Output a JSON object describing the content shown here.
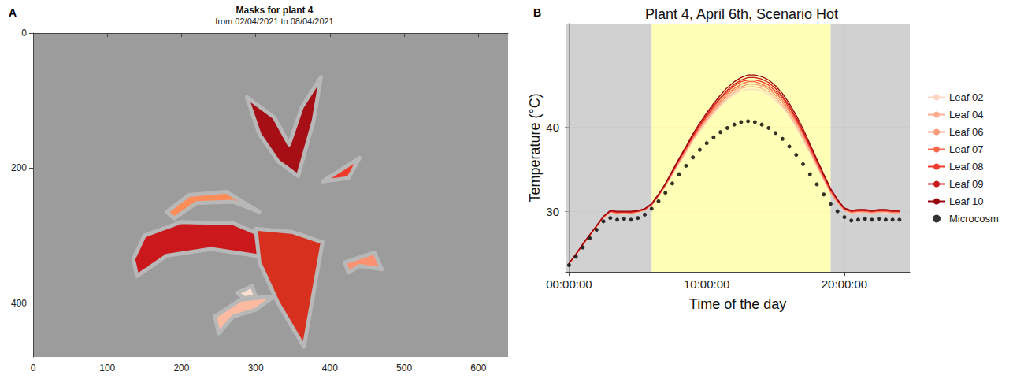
{
  "chart_data": [
    {
      "type": "polygon",
      "panel_label": "A",
      "title": "Masks for plant 4",
      "subtitle": "from 02/04/2021 to 08/04/2021",
      "xlim": [
        0,
        640
      ],
      "xticks": [
        0,
        100,
        200,
        300,
        400,
        500,
        600
      ],
      "ylim": [
        480,
        0
      ],
      "yticks": [
        0,
        200,
        400
      ],
      "grid": false,
      "masks": [
        {
          "color": "#a50f15",
          "points": [
            [
              288,
              95
            ],
            [
              325,
              125
            ],
            [
              345,
              165
            ],
            [
              362,
              110
            ],
            [
              388,
              65
            ],
            [
              378,
              130
            ],
            [
              357,
              212
            ],
            [
              330,
              190
            ],
            [
              305,
              150
            ]
          ]
        },
        {
          "color": "#ef3b2c",
          "points": [
            [
              390,
              220
            ],
            [
              440,
              185
            ],
            [
              425,
              215
            ]
          ]
        },
        {
          "color": "#fc8d59",
          "points": [
            [
              180,
              265
            ],
            [
              210,
              240
            ],
            [
              260,
              235
            ],
            [
              305,
              265
            ],
            [
              270,
              250
            ],
            [
              220,
              252
            ],
            [
              190,
              275
            ]
          ]
        },
        {
          "color": "#cb181d",
          "points": [
            [
              135,
              335
            ],
            [
              150,
              300
            ],
            [
              200,
              280
            ],
            [
              270,
              282
            ],
            [
              320,
              305
            ],
            [
              350,
              330
            ],
            [
              300,
              330
            ],
            [
              240,
              320
            ],
            [
              180,
              330
            ],
            [
              140,
              360
            ]
          ]
        },
        {
          "color": "#d7301f",
          "points": [
            [
              300,
              290
            ],
            [
              350,
              295
            ],
            [
              390,
              310
            ],
            [
              365,
              465
            ],
            [
              330,
              400
            ],
            [
              305,
              340
            ]
          ]
        },
        {
          "color": "#fc9272",
          "points": [
            [
              420,
              340
            ],
            [
              460,
              325
            ],
            [
              470,
              350
            ],
            [
              440,
              345
            ],
            [
              425,
              355
            ]
          ]
        },
        {
          "color": "#fcbba1",
          "points": [
            [
              245,
              420
            ],
            [
              280,
              395
            ],
            [
              325,
              390
            ],
            [
              300,
              410
            ],
            [
              270,
              420
            ],
            [
              250,
              445
            ]
          ]
        },
        {
          "color": "#fde0d2",
          "points": [
            [
              275,
              385
            ],
            [
              295,
              375
            ],
            [
              300,
              390
            ],
            [
              285,
              393
            ]
          ]
        }
      ]
    },
    {
      "type": "line",
      "panel_label": "B",
      "title": "Plant 4, April 6th, Scenario Hot",
      "xlabel": "Time of the day",
      "ylabel": "Temperature (°C)",
      "xlim": [
        -0.25,
        24.75
      ],
      "xticks": [
        {
          "value": 0,
          "label": "00:00:00"
        },
        {
          "value": 10,
          "label": "10:00:00"
        },
        {
          "value": 20,
          "label": "20:00:00"
        }
      ],
      "ylim": [
        22.8,
        52.3
      ],
      "yticks": [
        30,
        40
      ],
      "grid": true,
      "legend": "right",
      "shading": [
        {
          "from": -0.25,
          "to": 6,
          "color": "#bebebe"
        },
        {
          "from": 6,
          "to": 19,
          "color": "#ffff99"
        },
        {
          "from": 19,
          "to": 24.75,
          "color": "#bebebe"
        }
      ],
      "x": [
        0,
        0.5,
        1,
        1.5,
        2,
        2.5,
        3,
        3.5,
        4,
        4.5,
        5,
        5.5,
        6,
        6.5,
        7,
        7.5,
        8,
        8.5,
        9,
        9.5,
        10,
        10.5,
        11,
        11.5,
        12,
        12.5,
        13,
        13.5,
        14,
        14.5,
        15,
        15.5,
        16,
        16.5,
        17,
        17.5,
        18,
        18.5,
        19,
        19.5,
        20,
        20.5,
        21,
        21.5,
        22,
        22.5,
        23,
        23.5,
        24
      ],
      "series": [
        {
          "name": "Leaf 02",
          "color": "#fcd5c5",
          "values": [
            23.7,
            24.8,
            26.0,
            27.1,
            28.1,
            29.2,
            29.8,
            29.7,
            29.7,
            29.7,
            29.8,
            30.1,
            30.7,
            31.8,
            33.0,
            34.3,
            35.7,
            37.0,
            38.4,
            39.5,
            40.6,
            41.6,
            42.5,
            43.3,
            43.9,
            44.3,
            44.5,
            44.5,
            44.3,
            43.9,
            43.2,
            42.4,
            41.3,
            40.0,
            38.5,
            36.9,
            35.3,
            33.7,
            32.2,
            31.0,
            30.1,
            29.7,
            29.8,
            29.9,
            29.8,
            29.9,
            29.8,
            29.8,
            29.8
          ]
        },
        {
          "name": "Leaf 04",
          "color": "#fcae91",
          "values": [
            23.7,
            24.8,
            26.0,
            27.1,
            28.2,
            29.2,
            29.9,
            29.7,
            29.8,
            29.7,
            29.9,
            30.1,
            30.7,
            31.8,
            33.0,
            34.4,
            35.8,
            37.1,
            38.5,
            39.7,
            40.8,
            41.8,
            42.7,
            43.5,
            44.1,
            44.6,
            44.8,
            44.8,
            44.6,
            44.2,
            43.5,
            42.6,
            41.5,
            40.2,
            38.7,
            37.1,
            35.4,
            33.8,
            32.2,
            31.0,
            30.1,
            29.8,
            29.9,
            29.9,
            29.8,
            29.9,
            29.9,
            29.8,
            29.8
          ]
        },
        {
          "name": "Leaf 06",
          "color": "#fb9a7a",
          "values": [
            23.8,
            24.8,
            26.0,
            27.1,
            28.2,
            29.3,
            29.9,
            29.8,
            29.8,
            29.8,
            29.9,
            30.2,
            30.8,
            31.8,
            33.1,
            34.5,
            35.9,
            37.2,
            38.6,
            39.9,
            41.0,
            42.0,
            42.9,
            43.7,
            44.4,
            44.8,
            45.1,
            45.1,
            44.9,
            44.5,
            43.8,
            42.9,
            41.8,
            40.5,
            39.0,
            37.3,
            35.6,
            33.9,
            32.3,
            31.1,
            30.2,
            29.9,
            30.0,
            30.0,
            29.9,
            30.0,
            30.0,
            29.9,
            29.9
          ]
        },
        {
          "name": "Leaf 07",
          "color": "#fb6a4a",
          "values": [
            23.8,
            24.9,
            26.0,
            27.1,
            28.2,
            29.3,
            30.0,
            29.8,
            29.9,
            29.8,
            30.0,
            30.2,
            30.8,
            31.9,
            33.1,
            34.6,
            36.0,
            37.4,
            38.8,
            40.0,
            41.2,
            42.2,
            43.1,
            44.0,
            44.6,
            45.1,
            45.4,
            45.4,
            45.1,
            44.7,
            44.1,
            43.2,
            42.0,
            40.7,
            39.2,
            37.5,
            35.7,
            34.0,
            32.4,
            31.2,
            30.2,
            29.9,
            30.0,
            30.0,
            29.9,
            30.0,
            30.0,
            29.9,
            29.9
          ]
        },
        {
          "name": "Leaf 08",
          "color": "#ef3b2c",
          "values": [
            23.8,
            24.9,
            26.1,
            27.2,
            28.2,
            29.3,
            30.0,
            29.9,
            29.9,
            29.9,
            30.0,
            30.2,
            30.8,
            31.9,
            33.2,
            34.6,
            36.1,
            37.5,
            38.9,
            40.2,
            41.3,
            42.4,
            43.4,
            44.2,
            44.9,
            45.4,
            45.6,
            45.6,
            45.4,
            45.0,
            44.3,
            43.5,
            42.3,
            40.9,
            39.4,
            37.6,
            35.9,
            34.2,
            32.5,
            31.3,
            30.3,
            30.0,
            30.1,
            30.1,
            30.0,
            30.1,
            30.1,
            30.0,
            30.0
          ]
        },
        {
          "name": "Leaf 09",
          "color": "#cb181d",
          "values": [
            23.8,
            24.9,
            26.1,
            27.2,
            28.3,
            29.4,
            30.0,
            29.9,
            29.9,
            29.9,
            30.0,
            30.3,
            30.9,
            32.0,
            33.2,
            34.7,
            36.2,
            37.6,
            39.0,
            40.3,
            41.5,
            42.6,
            43.5,
            44.4,
            45.1,
            45.6,
            45.9,
            45.9,
            45.7,
            45.3,
            44.6,
            43.7,
            42.5,
            41.1,
            39.5,
            37.8,
            36.0,
            34.3,
            32.6,
            31.3,
            30.3,
            30.0,
            30.1,
            30.1,
            30.0,
            30.1,
            30.1,
            30.0,
            30.0
          ]
        },
        {
          "name": "Leaf 10",
          "color": "#99000d",
          "values": [
            23.8,
            24.9,
            26.1,
            27.2,
            28.3,
            29.4,
            30.1,
            30.0,
            30.0,
            30.0,
            30.1,
            30.3,
            30.9,
            32.0,
            33.3,
            34.8,
            36.3,
            37.7,
            39.2,
            40.5,
            41.7,
            42.8,
            43.8,
            44.7,
            45.4,
            45.9,
            46.2,
            46.2,
            46.0,
            45.6,
            44.9,
            44.0,
            42.8,
            41.4,
            39.8,
            38.0,
            36.2,
            34.4,
            32.7,
            31.4,
            30.4,
            30.1,
            30.2,
            30.2,
            30.1,
            30.2,
            30.2,
            30.1,
            30.1
          ]
        },
        {
          "name": "Microcosm",
          "color": "#000000",
          "type": "scatter",
          "marker": "circle",
          "values": [
            23.6,
            24.6,
            25.7,
            26.8,
            27.8,
            28.8,
            29.2,
            29.0,
            29.1,
            29.0,
            29.2,
            29.6,
            30.3,
            31.2,
            32.2,
            33.3,
            34.4,
            35.4,
            36.4,
            37.3,
            38.1,
            38.8,
            39.4,
            39.9,
            40.3,
            40.6,
            40.7,
            40.6,
            40.3,
            39.9,
            39.3,
            38.6,
            37.7,
            36.7,
            35.6,
            34.4,
            33.2,
            32.0,
            30.9,
            30.0,
            29.3,
            28.9,
            29.0,
            29.1,
            29.0,
            29.1,
            29.0,
            29.0,
            29.0
          ]
        }
      ]
    }
  ]
}
